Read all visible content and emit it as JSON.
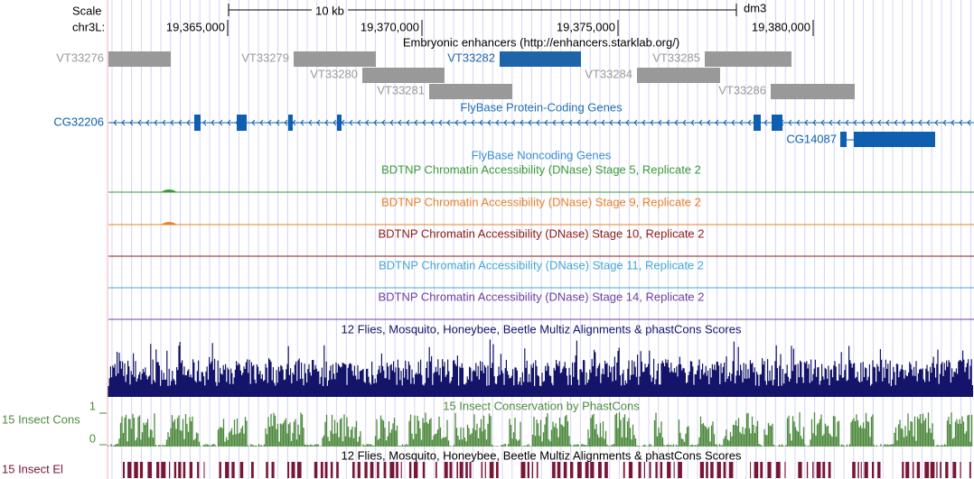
{
  "header": {
    "scale_label": "Scale",
    "scale_bar_label": "10 kb",
    "assembly": "dm3",
    "chrom_label": "chr3L:",
    "position_ticks": [
      "19,365,000",
      "19,370,000",
      "19,375,000",
      "19,380,000"
    ]
  },
  "enhancers": {
    "title": "Embryonic enhancers (http://enhancers.starklab.org/)",
    "items": [
      "VT33276",
      "VT33279",
      "VT33282",
      "VT33285",
      "VT33280",
      "VT33284",
      "VT33281",
      "VT33286"
    ]
  },
  "genes": {
    "title": "FlyBase Protein-Coding Genes",
    "items": [
      "CG32206",
      "CG14087"
    ]
  },
  "noncoding": {
    "title": "FlyBase Noncoding Genes"
  },
  "dnase_tracks": [
    "BDTNP Chromatin Accessibility (DNase) Stage 5, Replicate 2",
    "BDTNP Chromatin Accessibility (DNase) Stage 9, Replicate 2",
    "BDTNP Chromatin Accessibility (DNase) Stage 10, Replicate 2",
    "BDTNP Chromatin Accessibility (DNase) Stage 11, Replicate 2",
    "BDTNP Chromatin Accessibility (DNase) Stage 14, Replicate 2"
  ],
  "multiz": {
    "title": "12 Flies, Mosquito, Honeybee, Beetle Multiz Alignments & phastCons Scores"
  },
  "phastcons": {
    "title": "15 Insect Conservation by PhastCons",
    "side_label": "15 Insect Cons",
    "scale_max": "1",
    "scale_min": "0"
  },
  "elements": {
    "title": "12 Flies, Mosquito, Honeybee, Beetle Multiz Alignments & phastCons Scores",
    "side_label": "15 Insect El"
  }
}
